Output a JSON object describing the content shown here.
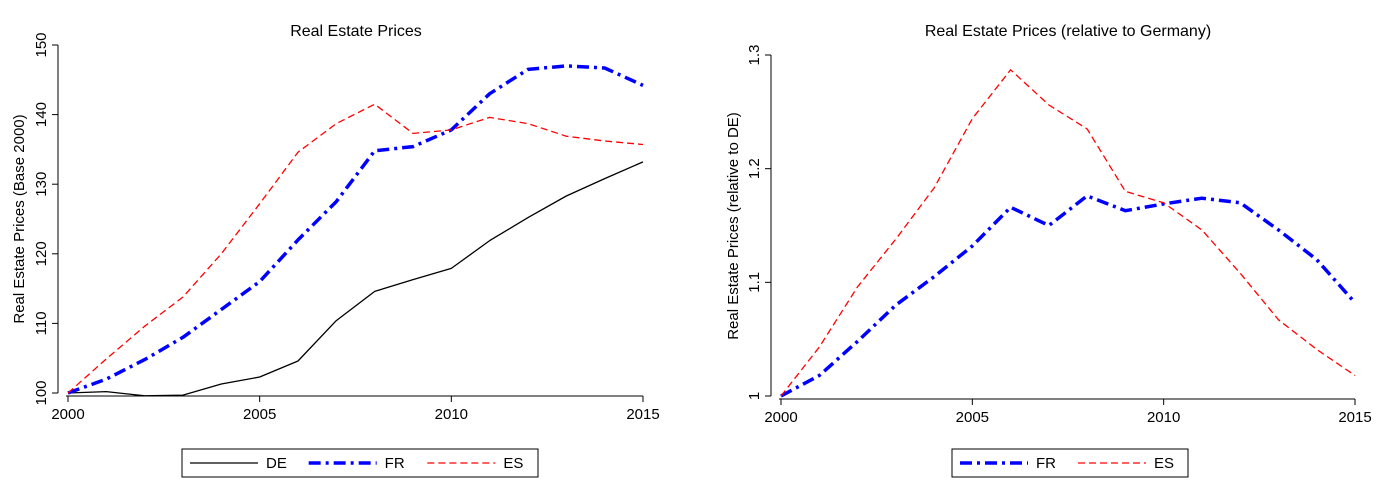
{
  "chart_data": [
    {
      "type": "line",
      "title": "Real Estate Prices",
      "xlabel": "",
      "ylabel": "Real Estate Prices (Base 2000)",
      "xlim": [
        2000,
        2015
      ],
      "ylim": [
        100,
        150
      ],
      "xticks": [
        2000,
        2005,
        2010,
        2015
      ],
      "yticks": [
        100,
        110,
        120,
        130,
        140,
        150
      ],
      "x": [
        2000,
        2001,
        2002,
        2003,
        2004,
        2005,
        2006,
        2007,
        2008,
        2009,
        2010,
        2011,
        2012,
        2013,
        2014,
        2015
      ],
      "grid": false,
      "legend_position": "bottom",
      "series": [
        {
          "name": "DE",
          "color": "#000000",
          "style": "solid",
          "values": [
            100,
            100.2,
            99.6,
            99.7,
            101.3,
            102.3,
            104.6,
            110.4,
            114.6,
            116.3,
            117.9,
            121.9,
            125.2,
            128.3,
            130.8,
            133.2
          ]
        },
        {
          "name": "FR",
          "color": "#0000ff",
          "style": "dashdot",
          "values": [
            100,
            102.0,
            104.8,
            108.0,
            112.0,
            116.0,
            122.0,
            127.5,
            134.8,
            135.4,
            137.8,
            143.0,
            146.5,
            147.0,
            146.7,
            144.2
          ]
        },
        {
          "name": "ES",
          "color": "#ff0000",
          "style": "dashed",
          "values": [
            100,
            104.9,
            109.6,
            113.8,
            120.0,
            127.2,
            134.6,
            138.7,
            141.5,
            137.3,
            137.8,
            139.6,
            138.7,
            136.9,
            136.2,
            135.7
          ]
        }
      ]
    },
    {
      "type": "line",
      "title": "Real Estate Prices (relative to Germany)",
      "xlabel": "",
      "ylabel": "Real Estate Prices (relative to DE)",
      "xlim": [
        2000,
        2015
      ],
      "ylim": [
        1.0,
        1.3
      ],
      "xticks": [
        2000,
        2005,
        2010,
        2015
      ],
      "yticks": [
        1,
        1.1,
        1.2,
        1.3
      ],
      "x": [
        2000,
        2001,
        2002,
        2003,
        2004,
        2005,
        2006,
        2007,
        2008,
        2009,
        2010,
        2011,
        2012,
        2013,
        2014,
        2015
      ],
      "grid": false,
      "legend_position": "bottom",
      "series": [
        {
          "name": "FR",
          "color": "#0000ff",
          "style": "dashdot",
          "values": [
            1.0,
            1.018,
            1.048,
            1.08,
            1.105,
            1.132,
            1.166,
            1.15,
            1.176,
            1.163,
            1.169,
            1.174,
            1.17,
            1.146,
            1.12,
            1.082
          ]
        },
        {
          "name": "ES",
          "color": "#ff0000",
          "style": "dashed",
          "values": [
            1.0,
            1.043,
            1.096,
            1.138,
            1.183,
            1.244,
            1.287,
            1.256,
            1.235,
            1.18,
            1.17,
            1.146,
            1.108,
            1.067,
            1.041,
            1.018
          ]
        }
      ]
    }
  ]
}
